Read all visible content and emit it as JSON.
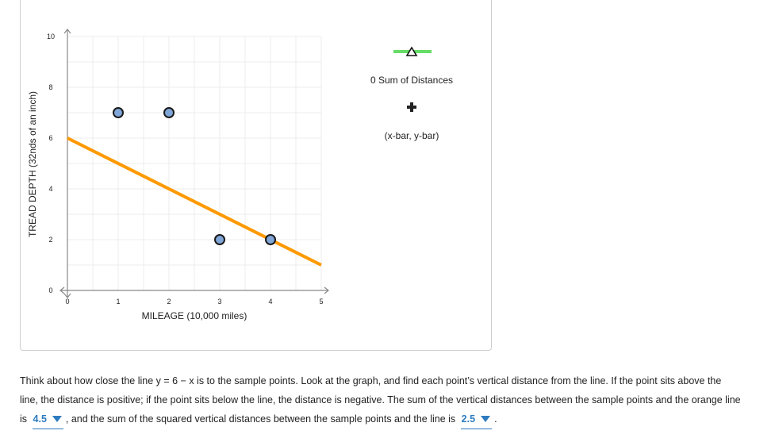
{
  "chart_data": {
    "type": "scatter",
    "xlabel": "MILEAGE (10,000 miles)",
    "ylabel": "TREAD DEPTH (32nds of an inch)",
    "xlim": [
      0,
      5
    ],
    "ylim": [
      0,
      10
    ],
    "x_ticks": [
      "0",
      "1",
      "2",
      "3",
      "4",
      "5"
    ],
    "y_ticks": [
      "0",
      "2",
      "4",
      "6",
      "8",
      "10"
    ],
    "grid": true,
    "points": [
      {
        "x": 1,
        "y": 7
      },
      {
        "x": 2,
        "y": 7
      },
      {
        "x": 3,
        "y": 2
      },
      {
        "x": 4,
        "y": 2
      }
    ],
    "line": {
      "intercept": 6,
      "slope": -1,
      "x_range": [
        0,
        5
      ]
    },
    "legend": {
      "sum_label": "0 Sum of Distances",
      "mean_label": "(x-bar, y-bar)"
    },
    "colors": {
      "line": "#ff9900",
      "point_fill": "#7fa6d6",
      "point_stroke": "#1a1a1a",
      "grid": "#ececec",
      "legend_bar": "#66dd66"
    }
  },
  "text": {
    "p1": "Think about how close the line y = 6 − x is to the sample points. Look at the graph, and find each point’s vertical distance from the line. If the point sits above the line, the distance is positive; if the point sits below the line, the distance is negative. The sum of the vertical distances between the sample points and the orange line is",
    "p2": ", and the sum of the squared vertical distances between the sample points and the line is",
    "p3": ".",
    "dropdown1": "4.5",
    "dropdown2": "2.5"
  }
}
